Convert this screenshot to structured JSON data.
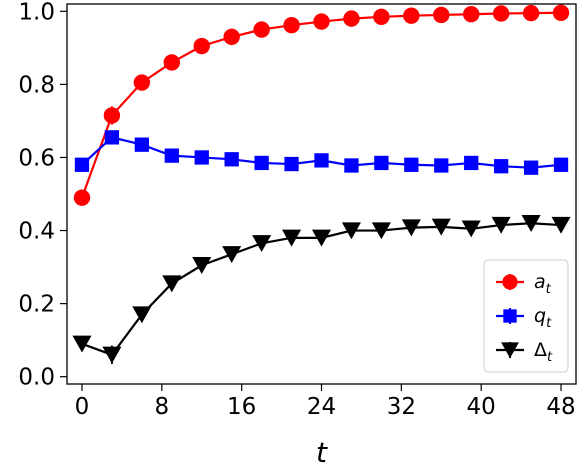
{
  "chart_data": {
    "type": "line",
    "title": "",
    "xlabel": "t",
    "ylabel": "",
    "xlim": [
      -1.5,
      49.5
    ],
    "ylim": [
      -0.02,
      1.02
    ],
    "x_ticks": [
      0,
      8,
      16,
      24,
      32,
      40,
      48
    ],
    "x_tick_labels": [
      "0",
      "8",
      "16",
      "24",
      "32",
      "40",
      "48"
    ],
    "y_ticks": [
      0.0,
      0.2,
      0.4,
      0.6,
      0.8,
      1.0
    ],
    "y_tick_labels": [
      "0.0",
      "0.2",
      "0.4",
      "0.6",
      "0.8",
      "1.0"
    ],
    "grid": false,
    "legend_position": "bottom-right",
    "x": [
      0,
      3,
      6,
      9,
      12,
      15,
      18,
      21,
      24,
      27,
      30,
      33,
      36,
      39,
      42,
      45,
      48
    ],
    "series": [
      {
        "name": "a",
        "name_sub": "t",
        "color": "#ff0000",
        "marker": "circle",
        "values": [
          0.49,
          0.715,
          0.805,
          0.86,
          0.905,
          0.93,
          0.95,
          0.962,
          0.972,
          0.98,
          0.985,
          0.988,
          0.99,
          0.992,
          0.994,
          0.995,
          0.996
        ],
        "errors": [
          0.0,
          0.025,
          0.02,
          0.018,
          0.012,
          0.01,
          0.008,
          0.007,
          0.006,
          0.005,
          0.004,
          0.004,
          0.003,
          0.003,
          0.003,
          0.003,
          0.003
        ]
      },
      {
        "name": "q",
        "name_sub": "t",
        "color": "#0000ff",
        "marker": "square",
        "values": [
          0.58,
          0.655,
          0.635,
          0.605,
          0.6,
          0.595,
          0.585,
          0.582,
          0.592,
          0.578,
          0.585,
          0.58,
          0.578,
          0.585,
          0.576,
          0.572,
          0.58
        ],
        "errors": [
          0.0,
          0.012,
          0.01,
          0.01,
          0.008,
          0.008,
          0.008,
          0.007,
          0.007,
          0.007,
          0.007,
          0.007,
          0.007,
          0.007,
          0.007,
          0.007,
          0.007
        ]
      },
      {
        "name": "Δ",
        "name_sub": "t",
        "color": "#000000",
        "marker": "triangle-down",
        "values": [
          0.09,
          0.06,
          0.17,
          0.255,
          0.305,
          0.335,
          0.365,
          0.38,
          0.38,
          0.4,
          0.4,
          0.408,
          0.41,
          0.405,
          0.415,
          0.42,
          0.415
        ],
        "errors": [
          0.0,
          0.025,
          0.02,
          0.02,
          0.015,
          0.012,
          0.01,
          0.01,
          0.009,
          0.009,
          0.008,
          0.008,
          0.008,
          0.008,
          0.008,
          0.008,
          0.008
        ]
      }
    ]
  }
}
